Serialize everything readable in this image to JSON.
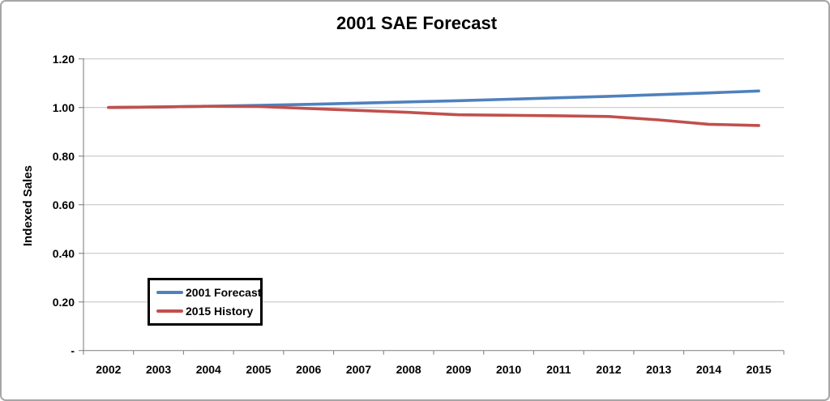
{
  "chart_data": {
    "type": "line",
    "title": "2001 SAE Forecast",
    "xlabel": "",
    "ylabel": "Indexed Sales",
    "categories": [
      "2002",
      "2003",
      "2004",
      "2005",
      "2006",
      "2007",
      "2008",
      "2009",
      "2010",
      "2011",
      "2012",
      "2013",
      "2014",
      "2015"
    ],
    "series": [
      {
        "name": "2001 Forecast",
        "color": "#4F81BD",
        "values": [
          1.0,
          1.002,
          1.005,
          1.009,
          1.013,
          1.018,
          1.023,
          1.028,
          1.034,
          1.04,
          1.046,
          1.053,
          1.06,
          1.068
        ]
      },
      {
        "name": "2015 History",
        "color": "#C0504D",
        "values": [
          1.0,
          1.002,
          1.005,
          1.004,
          0.996,
          0.988,
          0.98,
          0.97,
          0.968,
          0.966,
          0.963,
          0.949,
          0.931,
          0.926
        ]
      }
    ],
    "ylim": [
      0,
      1.2
    ],
    "yticks": [
      {
        "value": 0.0,
        "label": "-"
      },
      {
        "value": 0.2,
        "label": "0.20"
      },
      {
        "value": 0.4,
        "label": "0.40"
      },
      {
        "value": 0.6,
        "label": "0.60"
      },
      {
        "value": 0.8,
        "label": "0.80"
      },
      {
        "value": 1.0,
        "label": "1.00"
      },
      {
        "value": 1.2,
        "label": "1.20"
      }
    ],
    "grid": true,
    "legend_position": "inside-lower-left",
    "gridline_color": "#C8C8C8",
    "axis_color": "#8E8E8E",
    "text_color": "#000000",
    "background_color": "#FFFFFF",
    "frame_border_color": "#A6A6A6"
  }
}
